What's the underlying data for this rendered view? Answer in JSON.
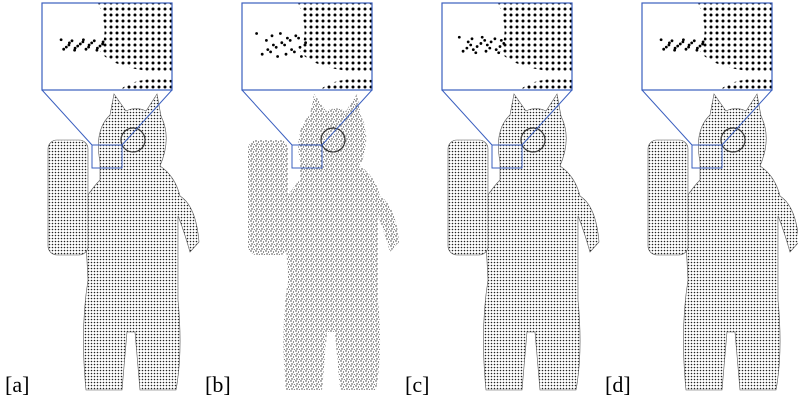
{
  "panels": [
    {
      "label": "[a]"
    },
    {
      "label": "[b]"
    },
    {
      "label": "[c]"
    },
    {
      "label": "[d]"
    }
  ]
}
